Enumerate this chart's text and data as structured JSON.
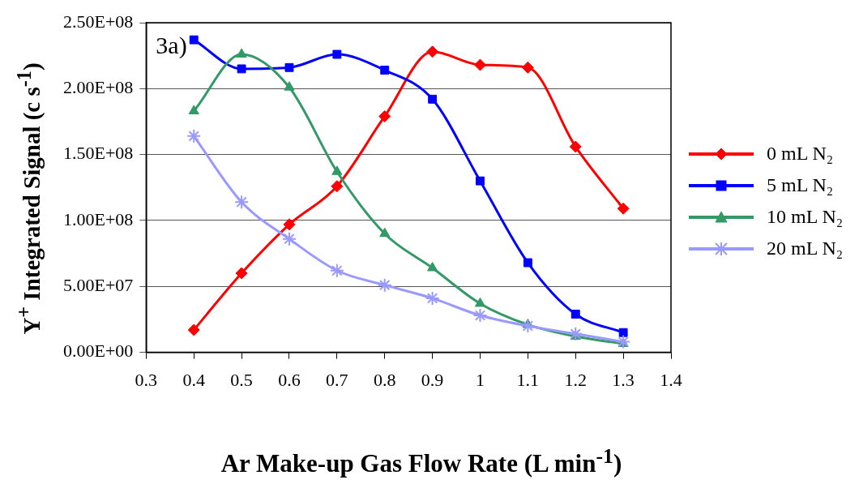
{
  "chart_data": {
    "type": "line",
    "xlabel": "Ar Make-up Gas Flow Rate (L min$^{-1}$)",
    "ylabel": "Y$^{+}$ Integrated Signal (c s$^{-1}$)",
    "annotations": [
      "3a)"
    ],
    "x": [
      0.4,
      0.5,
      0.6,
      0.7,
      0.8,
      0.9,
      1.0,
      1.1,
      1.2,
      1.3
    ],
    "series": [
      {
        "name": "0 mL N₂",
        "color": "#ff0000",
        "marker": "diamond",
        "values": [
          17000000,
          60000000,
          97000000,
          126000000,
          179000000,
          228000000,
          218000000,
          216000000,
          156000000,
          109000000
        ]
      },
      {
        "name": "5 mL N₂",
        "color": "#0000ff",
        "marker": "square",
        "values": [
          237000000,
          215000000,
          216000000,
          226000000,
          214000000,
          192000000,
          130000000,
          68000000,
          29000000,
          15000000
        ]
      },
      {
        "name": "10 mL N₂",
        "color": "#339966",
        "marker": "triangle",
        "values": [
          183000000,
          226000000,
          201000000,
          137000000,
          90000000,
          64000000,
          37000000,
          21000000,
          12000000,
          6500000
        ]
      },
      {
        "name": "20 mL N₂",
        "color": "#9999ff",
        "marker": "cross",
        "values": [
          164000000,
          114000000,
          86000000,
          62000000,
          51000000,
          41000000,
          28000000,
          20000000,
          14000000,
          8000000
        ]
      }
    ],
    "xlim": [
      0.3,
      1.4
    ],
    "xticks": [
      0.3,
      0.4,
      0.5,
      0.6,
      0.7,
      0.8,
      0.9,
      1,
      1.1,
      1.2,
      1.3,
      1.4
    ],
    "ylim": [
      0,
      250000000
    ],
    "yticks": [
      {
        "value": 0,
        "label": "0.00E+00"
      },
      {
        "value": 50000000,
        "label": "5.00E+07"
      },
      {
        "value": 100000000,
        "label": "1.00E+08"
      },
      {
        "value": 150000000,
        "label": "1.50E+08"
      },
      {
        "value": 200000000,
        "label": "2.00E+08"
      },
      {
        "value": 250000000,
        "label": "2.50E+08"
      }
    ],
    "grid": "y",
    "legend": "right"
  }
}
